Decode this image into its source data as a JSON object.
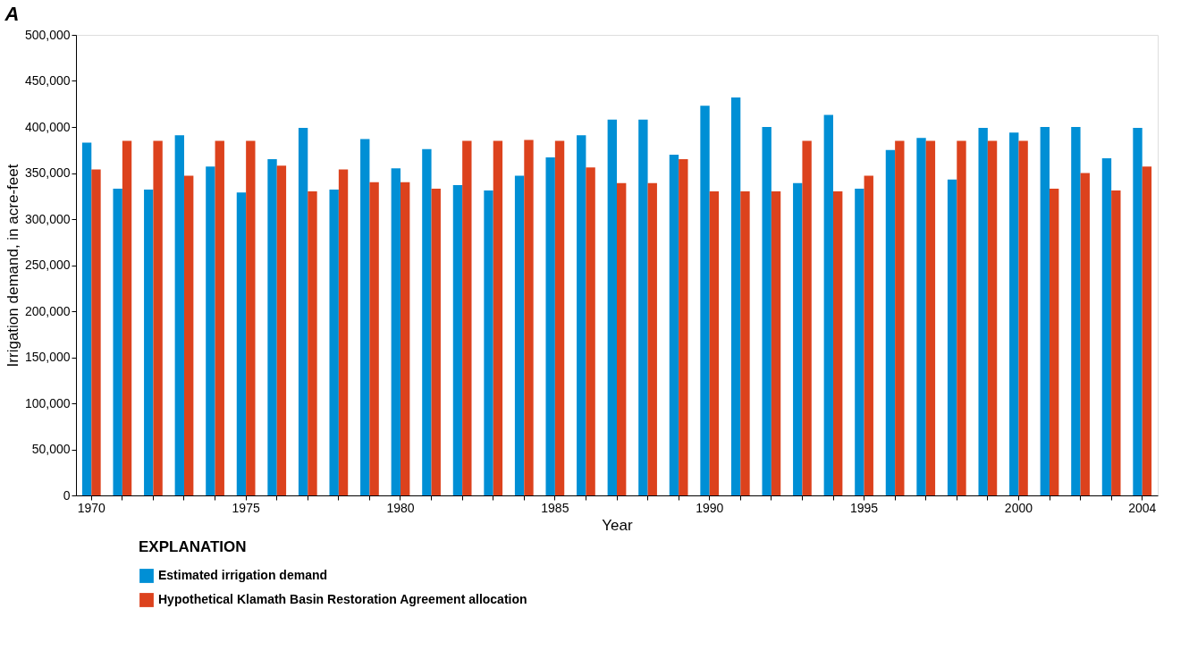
{
  "chart_data": {
    "type": "bar",
    "title": "A",
    "xlabel": "Year",
    "ylabel": "Irrigation demand, in acre-feet",
    "legend_title": "EXPLANATION",
    "categories": [
      "1970",
      null,
      null,
      null,
      null,
      "1975",
      null,
      null,
      null,
      null,
      "1980",
      null,
      null,
      null,
      null,
      "1985",
      null,
      null,
      null,
      null,
      "1990",
      null,
      null,
      null,
      null,
      "1995",
      null,
      null,
      null,
      null,
      "2000",
      null,
      null,
      null,
      "2004"
    ],
    "series": [
      {
        "name": "Estimated irrigation demand",
        "color": "#008fd5",
        "values": [
          383000,
          333000,
          332000,
          391000,
          357000,
          329000,
          365000,
          399000,
          332000,
          387000,
          355000,
          376000,
          337000,
          331000,
          347000,
          367000,
          391000,
          408000,
          408000,
          370000,
          423000,
          432000,
          400000,
          339000,
          413000,
          333000,
          375000,
          388000,
          343000,
          399000,
          394000,
          400000,
          400000,
          366000,
          399000
        ]
      },
      {
        "name": "Hypothetical Klamath Basin Restoration Agreement allocation",
        "color": "#dc421d",
        "values": [
          354000,
          385000,
          385000,
          347000,
          385000,
          385000,
          358000,
          330000,
          354000,
          340000,
          340000,
          333000,
          385000,
          385000,
          386000,
          385000,
          356000,
          339000,
          339000,
          365000,
          330000,
          330000,
          330000,
          385000,
          330000,
          347000,
          385000,
          385000,
          385000,
          385000,
          385000,
          333000,
          350000,
          331000,
          357000
        ]
      }
    ],
    "ylim": [
      0,
      500000
    ],
    "yticks": [
      0,
      {
        "value": 50000,
        "label": "50,000"
      },
      {
        "value": 100000,
        "label": "100,000"
      },
      {
        "value": 150000,
        "label": "150,000"
      },
      {
        "value": 200000,
        "label": "200,000"
      },
      {
        "value": 250000,
        "label": "250,000"
      },
      {
        "value": 300000,
        "label": "300,000"
      },
      {
        "value": 350000,
        "label": "350,000"
      },
      {
        "value": 400000,
        "label": "400,000"
      },
      {
        "value": 450000,
        "label": "450,000"
      },
      {
        "value": 500000,
        "label": "500,000"
      }
    ],
    "grid": false,
    "legend": "bottom left"
  }
}
